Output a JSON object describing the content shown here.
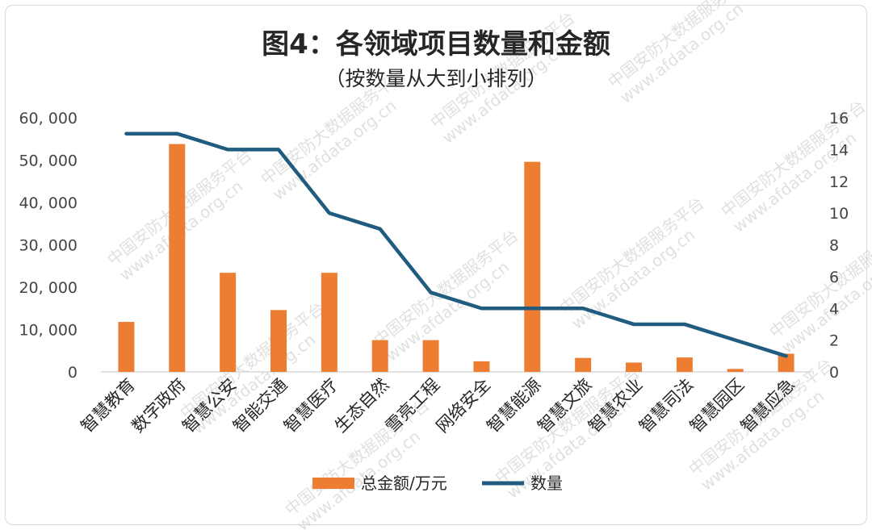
{
  "chart_data": {
    "type": "bar",
    "title": "图4：各领域项目数量和金额",
    "subtitle": "（按数量从大到小排列）",
    "categories": [
      "智慧教育",
      "数字政府",
      "智慧公安",
      "智能交通",
      "智慧医疗",
      "生态自然",
      "雪亮工程",
      "网络安全",
      "智慧能源",
      "智慧文旅",
      "智慧农业",
      "智慧司法",
      "智慧园区",
      "智慧应急"
    ],
    "series": [
      {
        "name": "总金额/万元",
        "type": "bar",
        "axis": "left",
        "color": "#ED7D31",
        "values": [
          11800,
          53800,
          23400,
          14600,
          23400,
          7500,
          7500,
          2500,
          49600,
          3300,
          2200,
          3400,
          700,
          4300
        ]
      },
      {
        "name": "数量",
        "type": "line",
        "axis": "right",
        "color": "#1F5C7F",
        "values": [
          15,
          15,
          14,
          14,
          10,
          9,
          5,
          4,
          4,
          4,
          3,
          3,
          2,
          1
        ]
      }
    ],
    "ylim_left": [
      0,
      60000
    ],
    "yticks_left": [
      "0",
      "10, 000",
      "20, 000",
      "30, 000",
      "40, 000",
      "50, 000",
      "60, 000"
    ],
    "ylim_right": [
      0,
      16
    ],
    "yticks_right": [
      "0",
      "2",
      "4",
      "6",
      "8",
      "10",
      "12",
      "14",
      "16"
    ],
    "grid": false,
    "legend_position": "bottom"
  },
  "watermark": [
    "中国安防大数据服务平台",
    "www.afdata.org.cn"
  ]
}
